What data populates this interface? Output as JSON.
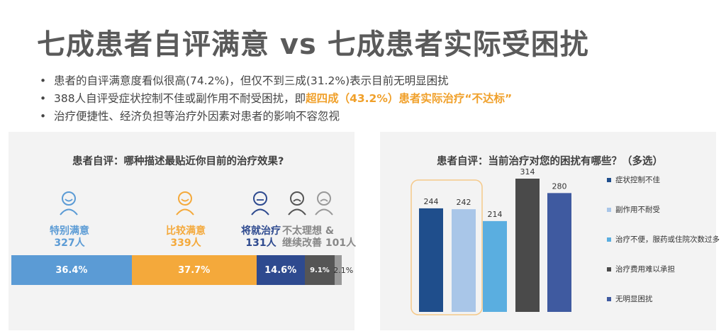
{
  "title": "七成患者自评满意 vs 七成患者实际受困扰",
  "bullets": {
    "b1": "患者的自评满意度看似很高(74.2%)，但仅不到三成(31.2%)表示目前无明显困扰",
    "b2_prefix": "388人自评受症状控制不佳或副作用不耐受困扰，即",
    "b2_highlight": "超四成（43.2%）患者实际治疗“不达标”",
    "b3": "治疗便捷性、经济负担等治疗外因素对患者的影响不容忽视"
  },
  "icons": {
    "very_satisfied": "smiling-face-icon",
    "satisfied": "smiling-face-icon",
    "acceptable": "neutral-face-icon",
    "unsatisfied": "sad-face-icon",
    "needs_improvement": "sad-face-icon"
  },
  "colors": {
    "very_satisfied": "#5b9bd5",
    "satisfied": "#f4a93b",
    "acceptable": "#2e4a8f",
    "unsatisfied": "#555555",
    "needs_improvement": "#999999",
    "highlight": "#f0a02a"
  },
  "left_chart": {
    "title": "患者自评：哪种描述最贴近你目前的治疗效果?",
    "groups": [
      {
        "name": "特别满意",
        "count": "327人"
      },
      {
        "name": "比较满意",
        "count": "339人"
      },
      {
        "name": "将就治疗",
        "count": "131人"
      },
      {
        "name_line1": "不太理想 &",
        "name_line2": "继续改善",
        "count": "101人"
      }
    ]
  },
  "chart_data": [
    {
      "type": "bar",
      "orientation": "horizontal-stacked",
      "title": "患者自评：哪种描述最贴近你目前的治疗效果?",
      "categories": [
        "特别满意",
        "比较满意",
        "将就治疗",
        "不太理想",
        "继续改善"
      ],
      "values": [
        36.4,
        37.7,
        14.6,
        9.1,
        2.1
      ],
      "labels": [
        "36.4%",
        "37.7%",
        "14.6%",
        "9.1%",
        "2.1%"
      ],
      "counts": {
        "特别满意": 327,
        "比较满意": 339,
        "将就治疗": 131,
        "不太理想 & 继续改善": 101
      }
    },
    {
      "type": "bar",
      "title": "患者自评：当前治疗对您的困扰有哪些？（多选）",
      "categories": [
        "症状控制不佳",
        "副作用不耐受",
        "治疗不便，服药或住院次数过多",
        "治疗费用难以承担",
        "无明显困扰"
      ],
      "values": [
        244,
        242,
        214,
        314,
        280
      ],
      "colors": [
        "#1f4e8c",
        "#a9c6e8",
        "#5aaee0",
        "#4a4a4a",
        "#3f5aa0"
      ],
      "legend": "right"
    }
  ]
}
